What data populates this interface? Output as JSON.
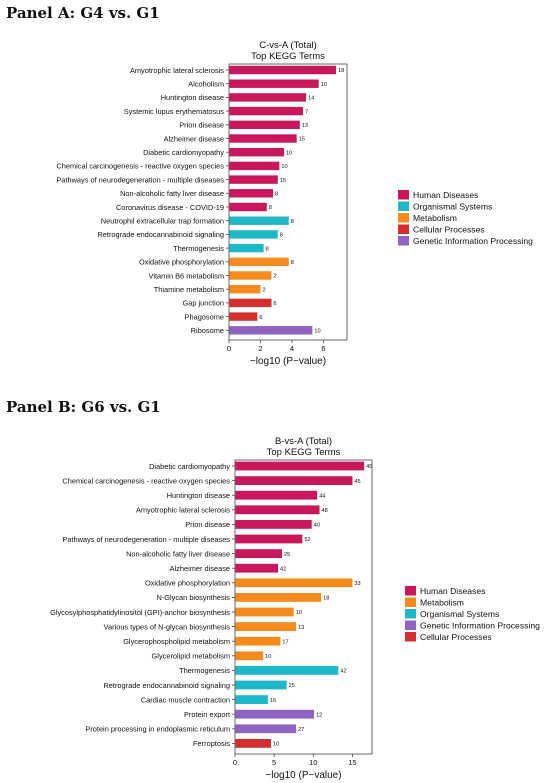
{
  "panels": [
    {
      "heading": "Panel A: G4 vs. G1"
    },
    {
      "heading": "Panel B: G6 vs. G1"
    }
  ],
  "chart_data": [
    {
      "type": "bar",
      "orientation": "horizontal",
      "title": "C-vs-A (Total)",
      "subtitle": "Top KEGG Terms",
      "xlabel": "−log10 (P−value)",
      "xlim": [
        0,
        7.5
      ],
      "xticks": [
        0,
        2,
        4,
        6
      ],
      "legend_position": "right",
      "legend": [
        {
          "name": "Human Diseases",
          "color": "#c8175a"
        },
        {
          "name": "Organismal Systems",
          "color": "#1fb8c8"
        },
        {
          "name": "Metabolism",
          "color": "#f58a1f"
        },
        {
          "name": "Cellular Processes",
          "color": "#d32f2f"
        },
        {
          "name": "Genetic Information Processing",
          "color": "#8e63c2"
        }
      ],
      "bars": [
        {
          "label": "Amyotrophic lateral sclerosis",
          "value": 6.8,
          "count": "18",
          "group": 0
        },
        {
          "label": "Alcoholism",
          "value": 5.7,
          "count": "10",
          "group": 0
        },
        {
          "label": "Huntington disease",
          "value": 4.9,
          "count": "14",
          "group": 0
        },
        {
          "label": "Systemic lupus erythematosus",
          "value": 4.7,
          "count": "7",
          "group": 0
        },
        {
          "label": "Prion disease",
          "value": 4.5,
          "count": "13",
          "group": 0
        },
        {
          "label": "Alzheimer disease",
          "value": 4.3,
          "count": "15",
          "group": 0
        },
        {
          "label": "Diabetic cardiomyopathy",
          "value": 3.5,
          "count": "10",
          "group": 0
        },
        {
          "label": "Chemical carcinogenesis - reactive oxygen species",
          "value": 3.2,
          "count": "10",
          "group": 0
        },
        {
          "label": "Pathways of neurodegeneration - multiple diseases",
          "value": 3.1,
          "count": "15",
          "group": 0
        },
        {
          "label": "Non-alcoholic fatty liver disease",
          "value": 2.8,
          "count": "8",
          "group": 0
        },
        {
          "label": "Coronavirus disease - COVID-19",
          "value": 2.4,
          "count": "8",
          "group": 0
        },
        {
          "label": "Neutrophil extracellular trap formation",
          "value": 3.8,
          "count": "8",
          "group": 1
        },
        {
          "label": "Retrograde endocannabinoid signaling",
          "value": 3.1,
          "count": "8",
          "group": 1
        },
        {
          "label": "Thermogenesis",
          "value": 2.2,
          "count": "8",
          "group": 1
        },
        {
          "label": "Oxidative phosphorylation",
          "value": 3.8,
          "count": "8",
          "group": 2
        },
        {
          "label": "Vitamin B6 metabolism",
          "value": 2.7,
          "count": "2",
          "group": 2
        },
        {
          "label": "Thiamine metabolism",
          "value": 2.0,
          "count": "2",
          "group": 2
        },
        {
          "label": "Gap junction",
          "value": 2.7,
          "count": "6",
          "group": 3
        },
        {
          "label": "Phagosome",
          "value": 1.8,
          "count": "6",
          "group": 3
        },
        {
          "label": "Ribosome",
          "value": 5.3,
          "count": "10",
          "group": 4
        }
      ]
    },
    {
      "type": "bar",
      "orientation": "horizontal",
      "title": "B-vs-A (Total)",
      "subtitle": "Top KEGG Terms",
      "xlabel": "−log10 (P−value)",
      "xlim": [
        0,
        17.5
      ],
      "xticks": [
        0,
        5,
        10,
        15
      ],
      "legend_position": "right",
      "legend": [
        {
          "name": "Human Diseases",
          "color": "#c8175a"
        },
        {
          "name": "Metabolism",
          "color": "#f58a1f"
        },
        {
          "name": "Organismal Systems",
          "color": "#1fb8c8"
        },
        {
          "name": "Genetic Information Processing",
          "color": "#8e63c2"
        },
        {
          "name": "Cellular Processes",
          "color": "#d32f2f"
        }
      ],
      "bars": [
        {
          "label": "Diabetic cardiomyopathy",
          "value": 16.5,
          "count": "45",
          "group": 0
        },
        {
          "label": "Chemical carcinogenesis - reactive oxygen species",
          "value": 15.0,
          "count": "45",
          "group": 0
        },
        {
          "label": "Huntington disease",
          "value": 10.5,
          "count": "44",
          "group": 0
        },
        {
          "label": "Amyotrophic lateral sclerosis",
          "value": 10.8,
          "count": "48",
          "group": 0
        },
        {
          "label": "Prion disease",
          "value": 9.8,
          "count": "40",
          "group": 0
        },
        {
          "label": "Pathways of neurodegeneration - multiple diseases",
          "value": 8.6,
          "count": "52",
          "group": 0
        },
        {
          "label": "Non-alcoholic fatty liver disease",
          "value": 6.0,
          "count": "25",
          "group": 0
        },
        {
          "label": "Alzheimer disease",
          "value": 5.5,
          "count": "42",
          "group": 0
        },
        {
          "label": "Oxidative phosphorylation",
          "value": 15.0,
          "count": "33",
          "group": 1
        },
        {
          "label": "N-Glycan biosynthesis",
          "value": 11.0,
          "count": "18",
          "group": 1
        },
        {
          "label": "Glycosylphosphatidylinositol (GPI)-anchor biosynthesis",
          "value": 7.5,
          "count": "10",
          "group": 1
        },
        {
          "label": "Various types of N-glycan biosynthesis",
          "value": 7.8,
          "count": "13",
          "group": 1
        },
        {
          "label": "Glycerophospholipid metabolism",
          "value": 5.8,
          "count": "17",
          "group": 1
        },
        {
          "label": "Glycerolipid metabolism",
          "value": 3.6,
          "count": "10",
          "group": 1
        },
        {
          "label": "Thermogenesis",
          "value": 13.2,
          "count": "42",
          "group": 2
        },
        {
          "label": "Retrograde endocannabinoid signaling",
          "value": 6.6,
          "count": "25",
          "group": 2
        },
        {
          "label": "Cardiac muscle contraction",
          "value": 4.2,
          "count": "16",
          "group": 2
        },
        {
          "label": "Protein export",
          "value": 10.1,
          "count": "12",
          "group": 3
        },
        {
          "label": "Protein processing in endoplasmic reticulum",
          "value": 7.8,
          "count": "27",
          "group": 3
        },
        {
          "label": "Ferroptosis",
          "value": 4.6,
          "count": "10",
          "group": 4
        }
      ]
    }
  ]
}
